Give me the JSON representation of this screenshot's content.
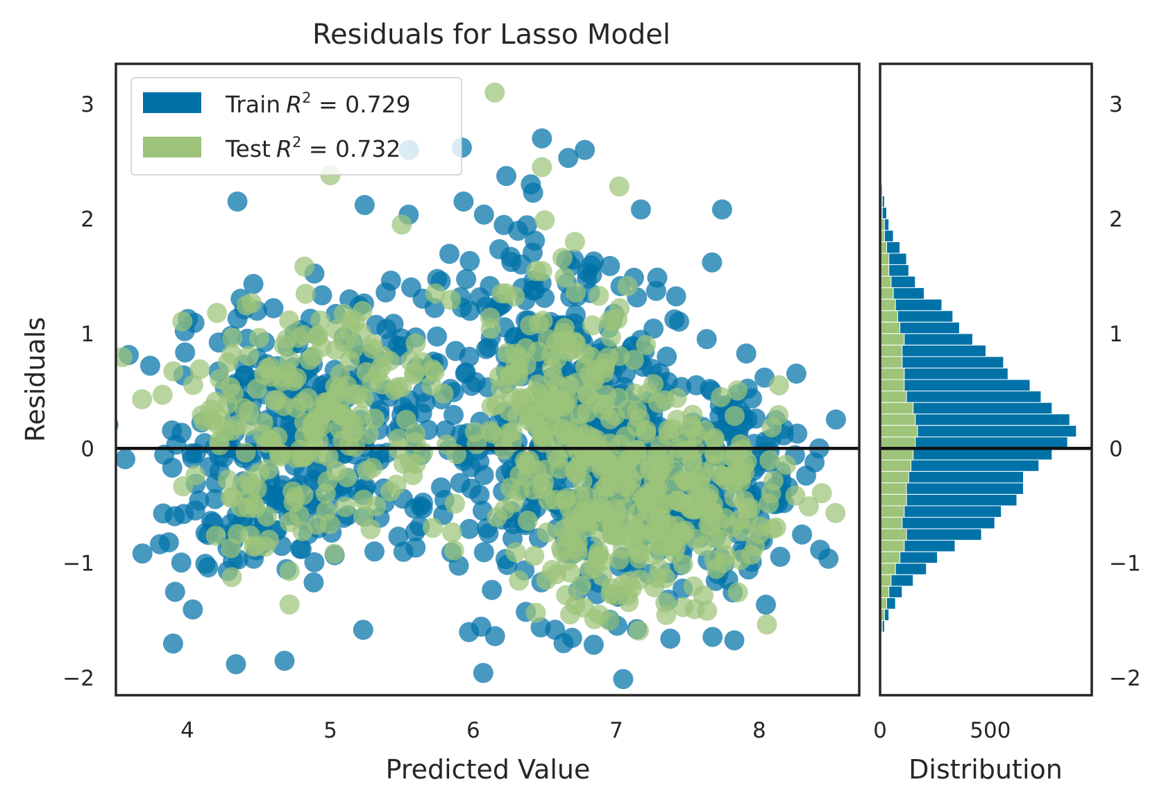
{
  "chart_data": {
    "type": "scatter",
    "title": "Residuals for Lasso Model",
    "xlabel": "Predicted Value",
    "ylabel": "Residuals",
    "hist_xlabel": "Distribution",
    "xlim": [
      3.5,
      8.7
    ],
    "ylim": [
      -2.15,
      3.35
    ],
    "xticks": [
      "4",
      "5",
      "6",
      "7",
      "8"
    ],
    "yticks": [
      "−2",
      "−1",
      "0",
      "1",
      "2",
      "3"
    ],
    "hist_xlim": [
      0,
      960
    ],
    "hist_xticks": [
      "0",
      "500"
    ],
    "grid": false,
    "legend_position": "upper-left",
    "reference_line_y": 0,
    "colors": {
      "train": "#0072a7",
      "test": "#9dc47a",
      "zero_line": "#111111",
      "frame": "#262626"
    },
    "legend": [
      {
        "name": "Train",
        "r2_prefix": "R",
        "r2_exp": "2",
        "r2_text": " = 0.729",
        "series": "train"
      },
      {
        "name": "Test",
        "r2_prefix": "R",
        "r2_exp": "2",
        "r2_text": " = 0.732",
        "series": "test"
      }
    ],
    "series": [
      {
        "name": "Train",
        "r2": 0.729,
        "clusters": [
          {
            "cx": 5.0,
            "cy": 0.25,
            "sx": 0.55,
            "sy": 0.6,
            "n": 260
          },
          {
            "cx": 4.4,
            "cy": -0.45,
            "sx": 0.35,
            "sy": 0.4,
            "n": 90
          },
          {
            "cx": 6.6,
            "cy": 0.15,
            "sx": 0.45,
            "sy": 0.7,
            "n": 280
          },
          {
            "cx": 7.2,
            "cy": -0.35,
            "sx": 0.45,
            "sy": 0.5,
            "n": 200
          },
          {
            "cx": 7.8,
            "cy": -0.15,
            "sx": 0.35,
            "sy": 0.45,
            "n": 110
          },
          {
            "cx": 6.5,
            "cy": 1.3,
            "sx": 0.5,
            "sy": 0.45,
            "n": 60
          }
        ],
        "outliers": [
          {
            "x": 3.9,
            "y": -1.7
          },
          {
            "x": 4.34,
            "y": -1.88
          },
          {
            "x": 4.68,
            "y": -1.85
          },
          {
            "x": 5.23,
            "y": -1.58
          },
          {
            "x": 5.97,
            "y": -1.6
          },
          {
            "x": 6.48,
            "y": 2.7
          },
          {
            "x": 6.78,
            "y": 2.6
          },
          {
            "x": 5.55,
            "y": 2.6
          },
          {
            "x": 5.92,
            "y": 2.62
          },
          {
            "x": 8.3,
            "y": -0.75
          },
          {
            "x": 8.42,
            "y": 0.0
          },
          {
            "x": 3.74,
            "y": 0.72
          },
          {
            "x": 4.35,
            "y": 2.15
          },
          {
            "x": 5.24,
            "y": 2.12
          },
          {
            "x": 7.67,
            "y": 1.62
          }
        ]
      },
      {
        "name": "Test",
        "r2": 0.732,
        "clusters": [
          {
            "cx": 4.9,
            "cy": 0.4,
            "sx": 0.45,
            "sy": 0.45,
            "n": 170
          },
          {
            "cx": 4.7,
            "cy": -0.5,
            "sx": 0.35,
            "sy": 0.35,
            "n": 45
          },
          {
            "cx": 6.6,
            "cy": 0.3,
            "sx": 0.35,
            "sy": 0.6,
            "n": 180
          },
          {
            "cx": 7.1,
            "cy": -0.6,
            "sx": 0.4,
            "sy": 0.45,
            "n": 200
          },
          {
            "cx": 7.7,
            "cy": -0.3,
            "sx": 0.3,
            "sy": 0.35,
            "n": 90
          }
        ],
        "outliers": [
          {
            "x": 6.15,
            "y": 3.1
          },
          {
            "x": 5.0,
            "y": 2.38
          },
          {
            "x": 7.35,
            "y": -1.45
          },
          {
            "x": 7.55,
            "y": -1.4
          },
          {
            "x": 7.7,
            "y": -1.05
          },
          {
            "x": 6.48,
            "y": 2.45
          },
          {
            "x": 5.5,
            "y": 1.95
          },
          {
            "x": 3.97,
            "y": -0.33
          }
        ]
      }
    ],
    "histogram": {
      "bin_edges_start": -1.6,
      "bin_width": 0.1,
      "train_counts": [
        20,
        40,
        70,
        100,
        150,
        210,
        260,
        340,
        460,
        520,
        550,
        620,
        650,
        650,
        720,
        780,
        850,
        890,
        860,
        780,
        730,
        680,
        580,
        560,
        480,
        420,
        360,
        330,
        280,
        200,
        160,
        130,
        120,
        90,
        60,
        40,
        30,
        20,
        10
      ],
      "test_counts": [
        10,
        20,
        30,
        40,
        50,
        70,
        90,
        110,
        120,
        100,
        110,
        120,
        120,
        130,
        140,
        150,
        160,
        170,
        160,
        150,
        120,
        110,
        110,
        100,
        100,
        110,
        90,
        80,
        70,
        60,
        50,
        40,
        40,
        30,
        20,
        20,
        10,
        10,
        5
      ]
    }
  }
}
